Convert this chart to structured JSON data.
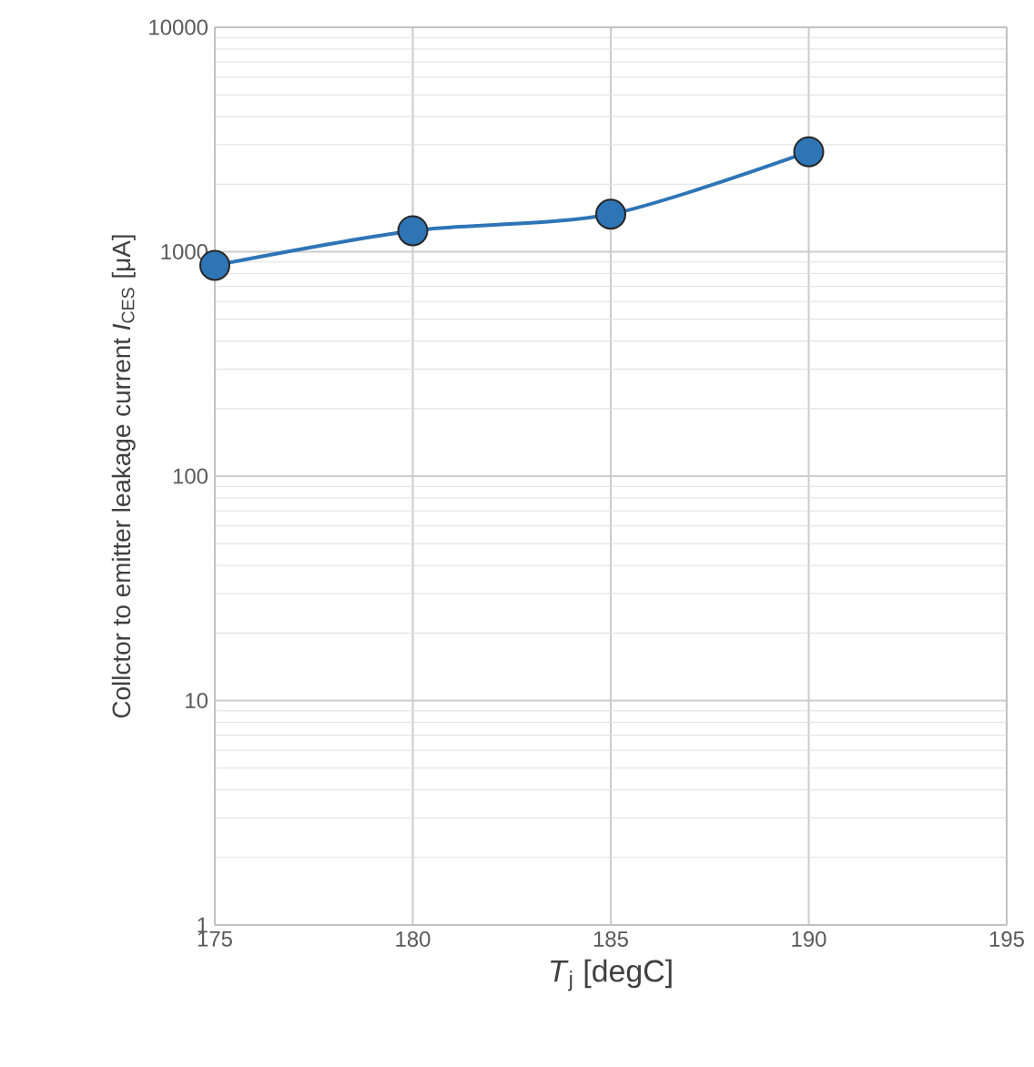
{
  "chart_data": {
    "type": "line",
    "xlabel": "*T*$_{j}$ [degC]",
    "ylabel": "Collctor to emitter leakage current *I*$_{CES}$ [μA]",
    "x": [
      175,
      180,
      185,
      190
    ],
    "series": [
      {
        "color": "#2e75b6",
        "values": [
          870,
          1240,
          1470,
          2790
        ]
      }
    ],
    "xlim": [
      175,
      195
    ],
    "xticks": [
      175,
      180,
      185,
      190,
      195
    ],
    "ylim": [
      1,
      10000
    ],
    "yticks": [
      1,
      10,
      100,
      1000,
      10000
    ],
    "log": "y",
    "grid": true,
    "marker": "circle",
    "line_style": "solid"
  }
}
